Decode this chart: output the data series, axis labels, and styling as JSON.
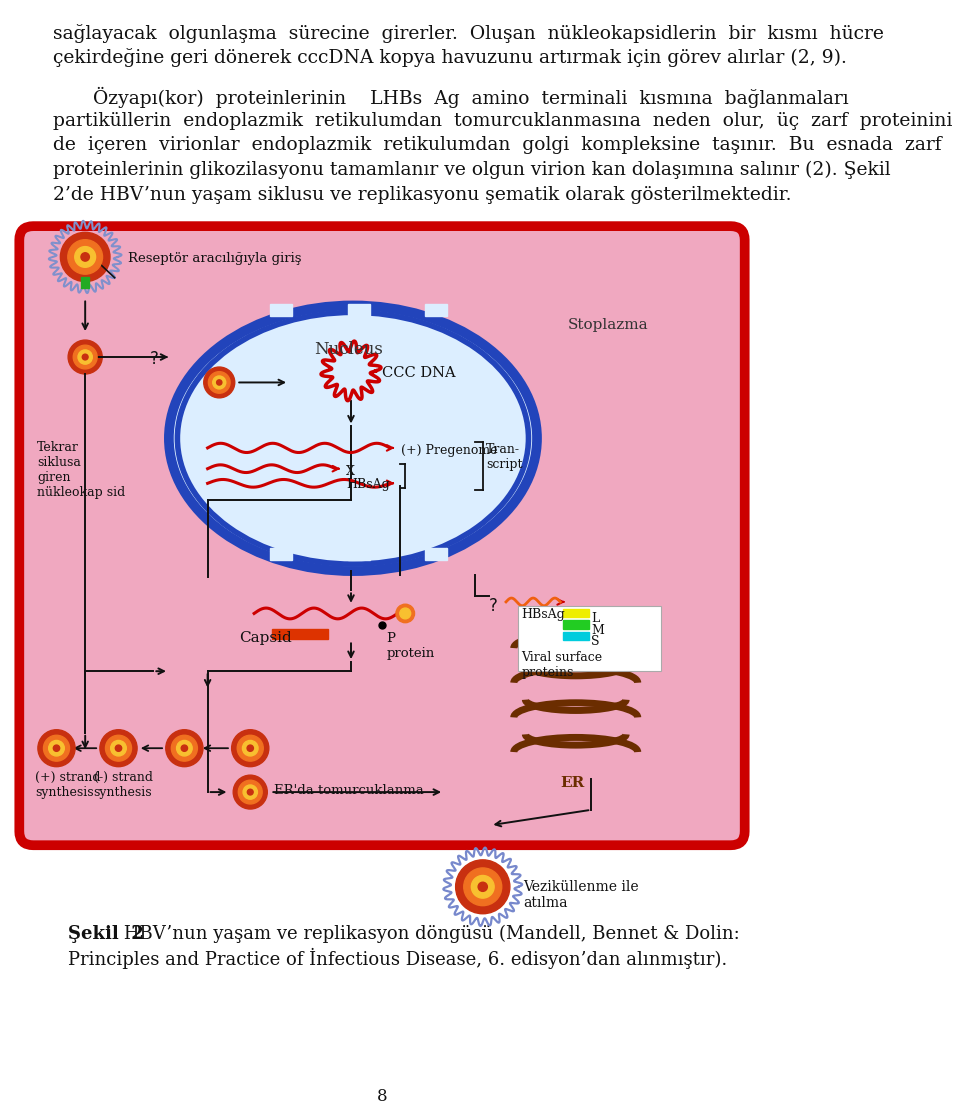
{
  "page_width": 9.6,
  "page_height": 14.22,
  "background_color": "#ffffff",
  "text_color": "#1a1a1a",
  "par1_line1": "sağlayacak  olgunlaşma  sürecine  girerler.  Oluşan  nükleokapsidlerin  bir  kısmı  hücre",
  "par1_line2": "çekirdeğine geri dönerek cccDNA kopya havuzunu artırmak için görev alırlar (2, 9).",
  "par2_line1": "Özyapı(kor)  proteinlerinin    LHBs  Ag  amino  terminali  kısmına  bağlanmaları",
  "par2_line2": "partiküllerin  endoplazmik  retikulumdan  tomurcuklanmasına  neden  olur,  üç  zarf  proteinini",
  "par2_line3": "de  içeren  virionlar  endoplazmik  retikulumdan  golgi  kompleksine  taşınır.  Bu  esnada  zarf",
  "par2_line4": "proteinlerinin glikozilasyonu tamamlanır ve olgun virion kan dolaşımına salınır (2). Şekil",
  "par2_line5": "2’de HBV’nun yaşam siklusu ve replikasyonu şematik olarak gösterilmektedir.",
  "caption_bold": "Şekil  2",
  "caption_rest": ": HBV’nun yaşam ve replikasyon döngüsü (Mandell, Bennet & Dolin:",
  "caption_line2": "Principles and Practice of İnfectious Disease, 6. edisyon’dan alınmıştır).",
  "page_number": "8",
  "stoplazma_label": "Stoplazma",
  "nucleus_label": "Nucleus",
  "reseptor_label": "Reseptör aracılığıyla giriş",
  "ccc_dna_label": "CCC DNA",
  "pregenome_label": "(+) Pregenome",
  "transcript_label": "Tran-\nscript",
  "x_label": "X",
  "hbsag_label2": "HBsAg",
  "capsid_label": "Capsid",
  "p_protein_label": "P\nprotein",
  "er_label": "ER",
  "er_bud_label": "ER'da tomurcuklanma",
  "plus_strand_label": "(+) strand\nsynthesis",
  "minus_strand_label": "(-) strand\nsynthesis",
  "tekrar_label": "Tekrar\nsiklusa\ngiren\nnükleokap sid",
  "vezikul_label": "Veziküllenme ile\natılma",
  "hbsag_leg_label": "HBsAg",
  "l_label": "L",
  "m_label": "M",
  "s_label": "S",
  "viral_surface_label": "Viral surface\nproteins"
}
